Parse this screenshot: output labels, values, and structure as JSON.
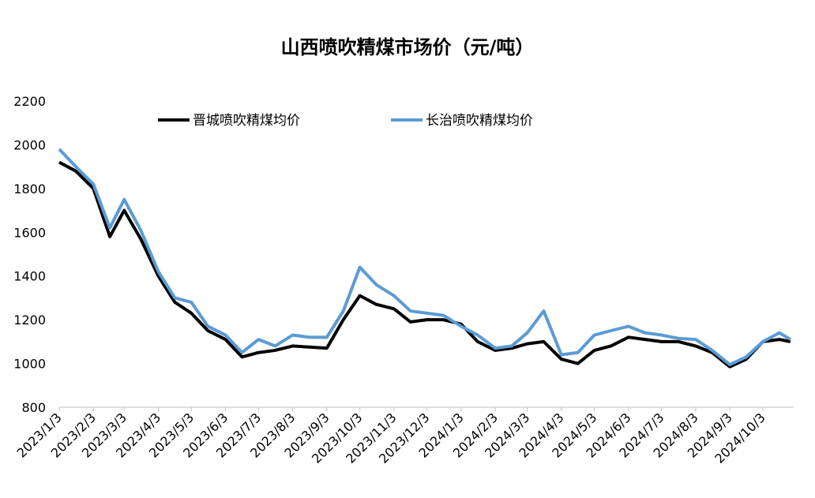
{
  "chart_data": {
    "type": "line",
    "title": "山西喷吹精煤市场价（元/吨）",
    "x": [
      "2023/1/3",
      "2023/1/18",
      "2023/2/3",
      "2023/2/18",
      "2023/3/3",
      "2023/3/18",
      "2023/4/3",
      "2023/4/18",
      "2023/5/3",
      "2023/5/18",
      "2023/6/3",
      "2023/6/18",
      "2023/7/3",
      "2023/7/18",
      "2023/8/3",
      "2023/8/18",
      "2023/9/3",
      "2023/9/18",
      "2023/10/3",
      "2023/10/18",
      "2023/11/3",
      "2023/11/18",
      "2023/12/3",
      "2023/12/18",
      "2024/1/3",
      "2024/1/18",
      "2024/2/3",
      "2024/2/18",
      "2024/3/3",
      "2024/3/18",
      "2024/4/3",
      "2024/4/18",
      "2024/5/3",
      "2024/5/18",
      "2024/6/3",
      "2024/6/18",
      "2024/7/3",
      "2024/7/18",
      "2024/8/3",
      "2024/8/18",
      "2024/9/3",
      "2024/9/18",
      "2024/10/3",
      "2024/10/18",
      "2024/10/28"
    ],
    "series": [
      {
        "name": "晋城喷吹精煤均价",
        "color": "#000000",
        "values": [
          1920,
          1880,
          1800,
          1580,
          1700,
          1570,
          1400,
          1280,
          1230,
          1150,
          1110,
          1030,
          1050,
          1060,
          1080,
          1075,
          1070,
          1200,
          1310,
          1270,
          1250,
          1190,
          1200,
          1200,
          1180,
          1100,
          1060,
          1070,
          1090,
          1100,
          1020,
          1000,
          1060,
          1080,
          1120,
          1110,
          1100,
          1100,
          1080,
          1050,
          985,
          1020,
          1100,
          1110,
          1100
        ]
      },
      {
        "name": "长治喷吹精煤均价",
        "color": "#5b9bd5",
        "values": [
          1980,
          1900,
          1820,
          1620,
          1750,
          1610,
          1420,
          1300,
          1280,
          1170,
          1130,
          1050,
          1110,
          1080,
          1130,
          1120,
          1120,
          1240,
          1440,
          1360,
          1310,
          1240,
          1230,
          1220,
          1170,
          1130,
          1070,
          1080,
          1140,
          1240,
          1040,
          1050,
          1130,
          1150,
          1170,
          1140,
          1130,
          1115,
          1110,
          1060,
          995,
          1030,
          1100,
          1140,
          1110
        ]
      }
    ],
    "xlim": [
      "2023/1/3",
      "2024/10/31"
    ],
    "xticks": [
      "2023/1/3",
      "2023/2/3",
      "2023/3/3",
      "2023/4/3",
      "2023/5/3",
      "2023/6/3",
      "2023/7/3",
      "2023/8/3",
      "2023/9/3",
      "2023/10/3",
      "2023/11/3",
      "2023/12/3",
      "2024/1/3",
      "2024/2/3",
      "2024/3/3",
      "2024/4/3",
      "2024/5/3",
      "2024/6/3",
      "2024/7/3",
      "2024/8/3",
      "2024/9/3",
      "2024/10/3"
    ],
    "ylim": [
      800,
      2200
    ],
    "yticks": [
      800,
      1000,
      1200,
      1400,
      1600,
      1800,
      2000,
      2200
    ],
    "legend": "top"
  }
}
